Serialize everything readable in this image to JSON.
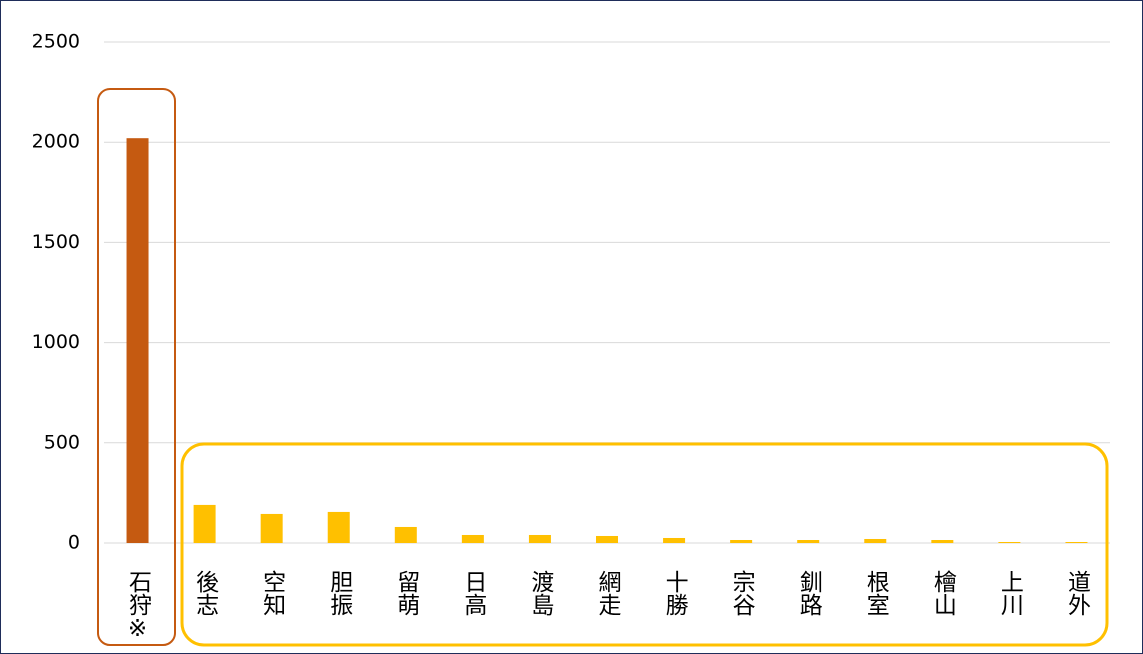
{
  "chart_data": {
    "type": "bar",
    "categories": [
      "石狩※",
      "後志",
      "空知",
      "胆振",
      "留萌",
      "日高",
      "渡島",
      "網走",
      "十勝",
      "宗谷",
      "釧路",
      "根室",
      "檜山",
      "上川",
      "道外"
    ],
    "values": [
      2020,
      190,
      145,
      155,
      80,
      40,
      40,
      35,
      25,
      15,
      15,
      20,
      15,
      5,
      5
    ],
    "colors": [
      "#c55a11",
      "#ffc000",
      "#ffc000",
      "#ffc000",
      "#ffc000",
      "#ffc000",
      "#ffc000",
      "#ffc000",
      "#ffc000",
      "#ffc000",
      "#ffc000",
      "#ffc000",
      "#ffc000",
      "#ffc000",
      "#ffc000"
    ],
    "ylim": [
      0,
      2500
    ],
    "yticks": [
      0,
      500,
      1000,
      1500,
      2000,
      2500
    ],
    "grid": true
  }
}
